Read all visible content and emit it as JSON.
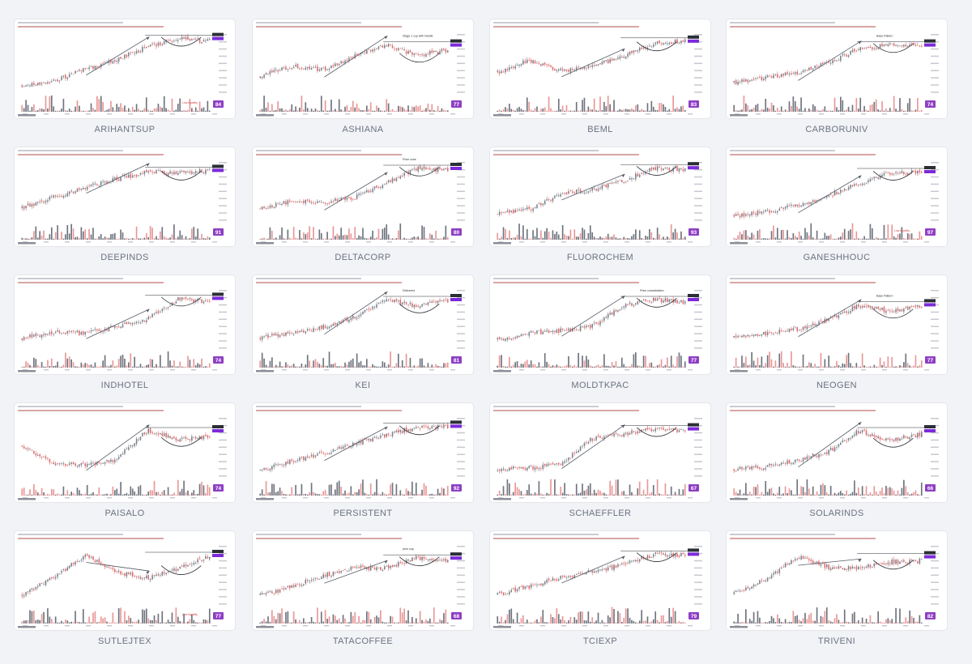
{
  "colors": {
    "background": "#f2f3f6",
    "card": "#ffffff",
    "candle_up": "#7a7f88",
    "candle_down": "#e06a6a",
    "volume_up": "#555b66",
    "volume_down": "#e58585",
    "rating_badge": "#8e3fc4",
    "price_label": "#7c2ad9",
    "ticker_text": "#6a7282"
  },
  "chart_data": [
    {
      "type": "candlestick",
      "ticker": "ARIHANTSUP",
      "rating": "84",
      "pattern": "cup-with-handle",
      "trend": [
        0.15,
        0.22,
        0.4,
        0.55,
        0.75,
        0.88,
        0.84
      ],
      "annotations": [
        "Low liquidity"
      ],
      "trendline": true
    },
    {
      "type": "candlestick",
      "ticker": "ASHIANA",
      "rating": "77",
      "pattern": "cup-with-handle",
      "trend": [
        0.3,
        0.45,
        0.4,
        0.6,
        0.78,
        0.62,
        0.7
      ],
      "annotations": [
        "Stage 1 cup with handle"
      ],
      "trendline": true
    },
    {
      "type": "candlestick",
      "ticker": "BEML",
      "rating": "83",
      "pattern": "cup-with-handle",
      "trend": [
        0.35,
        0.55,
        0.38,
        0.45,
        0.6,
        0.8,
        0.84
      ],
      "annotations": [],
      "trendline": true
    },
    {
      "type": "candlestick",
      "ticker": "CARBORUNIV",
      "rating": "74",
      "pattern": "base",
      "trend": [
        0.2,
        0.28,
        0.35,
        0.5,
        0.72,
        0.78,
        0.76
      ],
      "annotations": [
        "Base Pattern"
      ],
      "trendline": true
    },
    {
      "type": "candlestick",
      "ticker": "DEEPINDS",
      "rating": "91",
      "pattern": "cup",
      "trend": [
        0.25,
        0.4,
        0.55,
        0.68,
        0.8,
        0.78,
        0.82
      ],
      "annotations": [],
      "trendline": true
    },
    {
      "type": "candlestick",
      "ticker": "DELTACORP",
      "rating": "80",
      "pattern": "cup-with-handle",
      "trend": [
        0.22,
        0.35,
        0.33,
        0.4,
        0.62,
        0.85,
        0.82
      ],
      "annotations": [
        "Price cone"
      ],
      "trendline": true
    },
    {
      "type": "candlestick",
      "ticker": "FLUOROCHEM",
      "rating": "93",
      "pattern": "cup",
      "trend": [
        0.15,
        0.22,
        0.45,
        0.52,
        0.65,
        0.86,
        0.83
      ],
      "annotations": [],
      "trendline": true
    },
    {
      "type": "candlestick",
      "ticker": "GANESHHOUC",
      "rating": "97",
      "pattern": "cup",
      "trend": [
        0.12,
        0.18,
        0.28,
        0.42,
        0.62,
        0.78,
        0.8
      ],
      "annotations": [
        "Low liquidity"
      ],
      "trendline": true
    },
    {
      "type": "candlestick",
      "ticker": "INDHOTEL",
      "rating": "74",
      "pattern": "cup-with-handle",
      "trend": [
        0.2,
        0.3,
        0.28,
        0.38,
        0.5,
        0.82,
        0.76
      ],
      "annotations": [],
      "trendline": true
    },
    {
      "type": "candlestick",
      "ticker": "KEI",
      "rating": "81",
      "pattern": "cup",
      "trend": [
        0.22,
        0.28,
        0.38,
        0.52,
        0.8,
        0.7,
        0.78
      ],
      "annotations": [
        "Delivered"
      ],
      "trendline": true
    },
    {
      "type": "candlestick",
      "ticker": "MOLDTKPAC",
      "rating": "77",
      "pattern": "cup-with-handle",
      "trend": [
        0.18,
        0.28,
        0.32,
        0.38,
        0.7,
        0.8,
        0.76
      ],
      "annotations": [
        "Price consolidation"
      ],
      "trendline": true
    },
    {
      "type": "candlestick",
      "ticker": "NEOGEN",
      "rating": "77",
      "pattern": "base",
      "trend": [
        0.22,
        0.28,
        0.34,
        0.48,
        0.72,
        0.62,
        0.7
      ],
      "annotations": [
        "Base Pattern"
      ],
      "trendline": true
    },
    {
      "type": "candlestick",
      "ticker": "PAISALO",
      "rating": "74",
      "pattern": "cup-with-handle",
      "trend": [
        0.5,
        0.25,
        0.22,
        0.3,
        0.75,
        0.62,
        0.65
      ],
      "annotations": [],
      "trendline": true
    },
    {
      "type": "candlestick",
      "ticker": "PERSISTENT",
      "rating": "92",
      "pattern": "uptrend",
      "trend": [
        0.15,
        0.28,
        0.4,
        0.55,
        0.68,
        0.8,
        0.82
      ],
      "annotations": [],
      "trendline": true
    },
    {
      "type": "candlestick",
      "ticker": "SCHAEFFLER",
      "rating": "67",
      "pattern": "cup",
      "trend": [
        0.15,
        0.18,
        0.22,
        0.62,
        0.7,
        0.78,
        0.74
      ],
      "annotations": [],
      "trendline": true
    },
    {
      "type": "candlestick",
      "ticker": "SOLARINDS",
      "rating": "66",
      "pattern": "cup",
      "trend": [
        0.15,
        0.2,
        0.3,
        0.42,
        0.75,
        0.6,
        0.7
      ],
      "annotations": [],
      "trendline": true
    },
    {
      "type": "candlestick",
      "ticker": "SUTLEJTEX",
      "rating": "77",
      "pattern": "cup",
      "trend": [
        0.2,
        0.45,
        0.8,
        0.55,
        0.45,
        0.6,
        0.78
      ],
      "annotations": [
        "Low liquidity"
      ],
      "trendline": true
    },
    {
      "type": "candlestick",
      "ticker": "TATACOFFEE",
      "rating": "68",
      "pattern": "cup",
      "trend": [
        0.18,
        0.32,
        0.48,
        0.62,
        0.6,
        0.76,
        0.7
      ],
      "annotations": [
        "prior cup"
      ],
      "trendline": true
    },
    {
      "type": "candlestick",
      "ticker": "TCIEXP",
      "rating": "79",
      "pattern": "cup",
      "trend": [
        0.2,
        0.32,
        0.45,
        0.55,
        0.65,
        0.82,
        0.8
      ],
      "annotations": [],
      "trendline": true
    },
    {
      "type": "candlestick",
      "ticker": "TRIVENI",
      "rating": "82",
      "pattern": "cup",
      "trend": [
        0.22,
        0.42,
        0.78,
        0.62,
        0.6,
        0.7,
        0.72
      ],
      "annotations": [],
      "trendline": true
    }
  ]
}
